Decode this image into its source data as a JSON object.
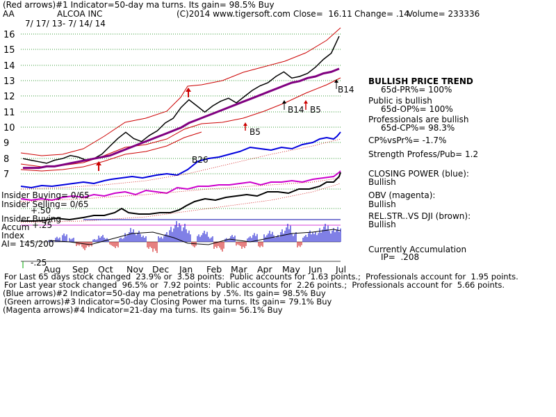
{
  "header": {
    "line1": "(Red arrows)#1 Indicator=50-day ma turns. Its gain= 98.5% Buy",
    "ticker": "AA",
    "company": "ALCOA INC",
    "copyright": "(C)2014 www.tigersoft.com",
    "close": "Close=  16.11",
    "change": "Change= .14",
    "volume": "Volume= 233336",
    "date_range": "7/ 17/ 13- 7/ 14/ 14"
  },
  "left_labels": {
    "insider_buying_1": "Insider Buying= 0/65",
    "insider_selling": "Insider Selling= 0/65",
    "tick_p50": "+.50",
    "insider_buying_2": "Insider Buying",
    "accum": "Accum",
    "tick_p25": "+.25",
    "index": "Index",
    "ai": "AI= 145/200",
    "tick_m25": "-.25"
  },
  "right_panel": {
    "trend_title": "BULLISH PRICE TREND",
    "pr": "65d-PR%= 100%",
    "public": "Public is bullish",
    "op": "65d-OP%= 100%",
    "pros": "Professionals are bullish",
    "cp": "65d-CP%= 98.3%",
    "cpvspr": "CP%vsPr%= -1.7%",
    "strength": "Strength Profess/Pub= 1.2",
    "closing_power": "CLOSING POWER (blue):",
    "closing_power_v": "Bullish",
    "obv": "OBV (magenta):",
    "obv_v": "Bullish",
    "relstr": "REL.STR..VS DJI (brown):",
    "relstr_v": "Bullish",
    "accum": "Currently Accumulation",
    "ip": "IP=  .208"
  },
  "footer": {
    "line1": "For Last 65 days stock changed  23.9% or  3.58 points:  Public accounts for  1.63 points.;  Professionals account for  1.95 points.",
    "line2": "For Last year stock changed  96.5% or  7.92 points:  Public accounts for  2.26 points.;  Professionals account for  5.66 points.",
    "line3": "(Blue arrows)#2 Indicator=50-day ma penetrations by .5%. Its gain= 98.5% Buy",
    "line4": "(Green arrows)#3 Indicator=50-day Closing Power ma turns. Its gain= 79.1% Buy",
    "line5": "(Magenta arrows)#4 Indicator=21-day ma turns. Its gain= 56.1% Buy"
  },
  "chart_data": {
    "type": "line",
    "title": "ALCOA INC",
    "ylim": [
      6.5,
      16.5
    ],
    "y_ticks": [
      7,
      8,
      9,
      10,
      11,
      12,
      13,
      14,
      15,
      16
    ],
    "months": [
      "Aug",
      "Sep",
      "Oct",
      "Nov",
      "Dec",
      "Jan",
      "Feb",
      "Mar",
      "Apr",
      "May",
      "Jun",
      "Jul"
    ],
    "series": [
      {
        "name": "Price",
        "color": "#000000",
        "values": [
          8.2,
          8.1,
          8.0,
          7.9,
          8.1,
          8.2,
          8.4,
          8.3,
          8.1,
          8.2,
          8.5,
          9.0,
          9.5,
          9.9,
          9.5,
          9.3,
          9.7,
          10.0,
          10.5,
          10.8,
          11.5,
          12.0,
          11.6,
          11.2,
          11.6,
          11.9,
          12.1,
          11.8,
          12.2,
          12.6,
          12.9,
          13.1,
          13.5,
          13.8,
          13.4,
          13.5,
          13.7,
          14.1,
          14.6,
          15.0,
          16.1
        ]
      },
      {
        "name": "50-day MA",
        "color": "#800080",
        "values": [
          7.6,
          7.6,
          7.6,
          7.7,
          7.7,
          7.8,
          7.9,
          8.0,
          8.1,
          8.2,
          8.3,
          8.4,
          8.6,
          8.8,
          9.0,
          9.2,
          9.4,
          9.6,
          9.8,
          10.0,
          10.2,
          10.5,
          10.7,
          10.9,
          11.1,
          11.3,
          11.5,
          11.7,
          11.9,
          12.1,
          12.3,
          12.5,
          12.7,
          12.9,
          13.1,
          13.2,
          13.4,
          13.5,
          13.7,
          13.8,
          14.0
        ]
      }
    ],
    "annotations": [
      "B26",
      "B14",
      "B5",
      "B5",
      "B14"
    ]
  }
}
